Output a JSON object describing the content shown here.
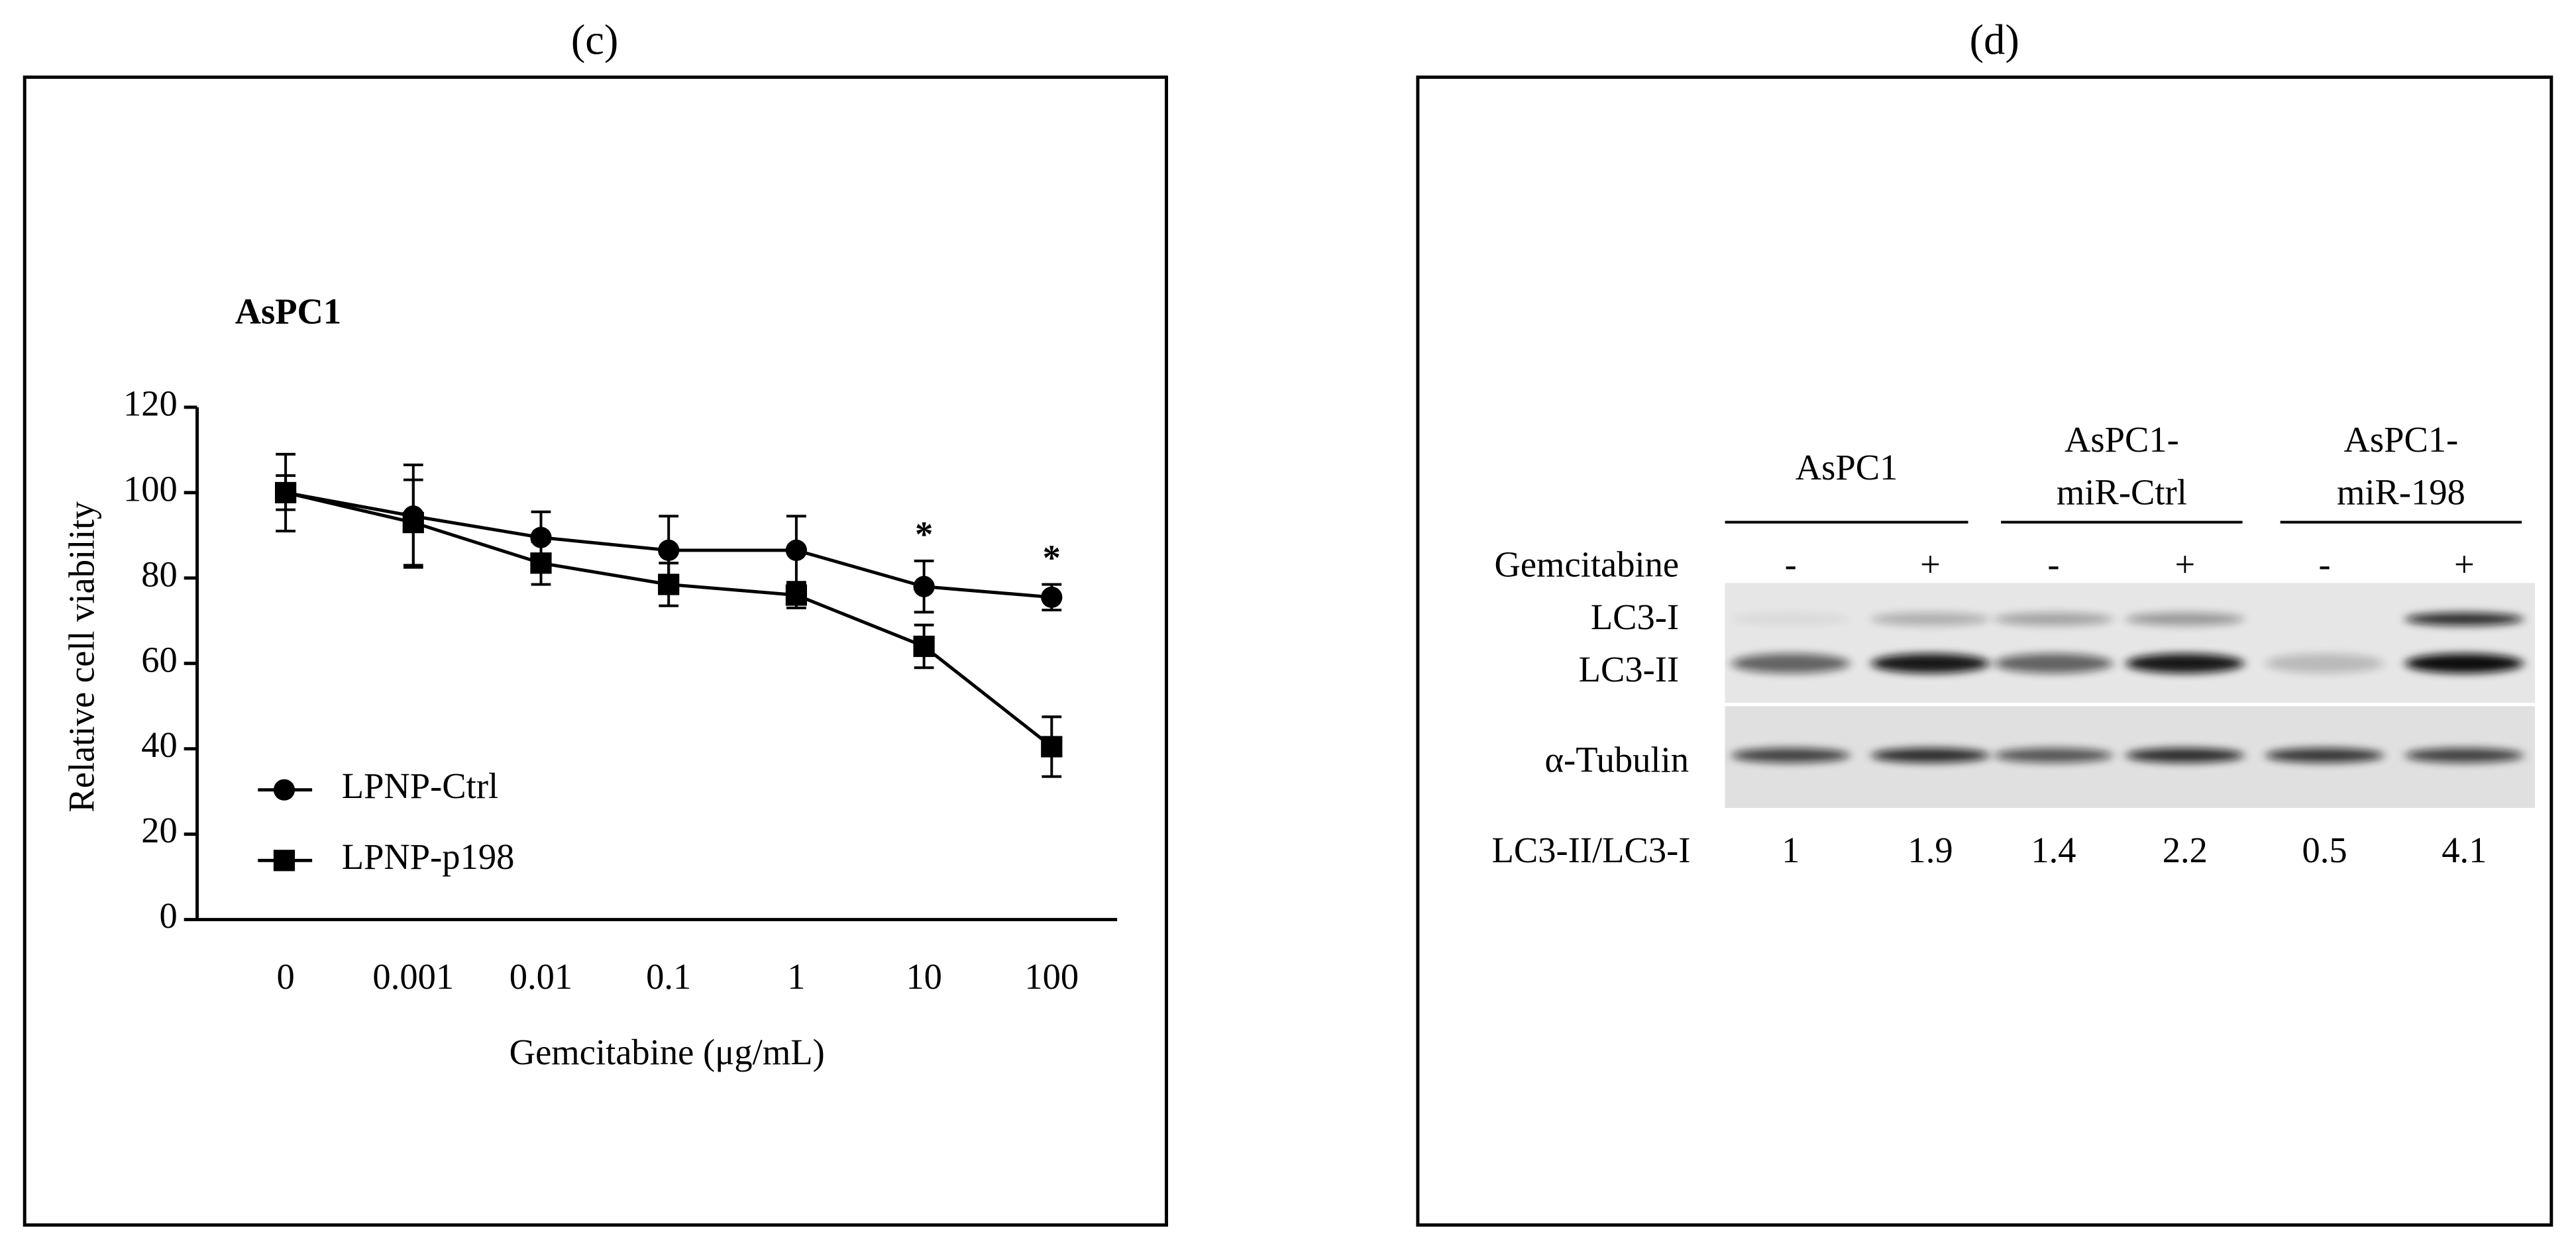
{
  "panels": {
    "c": "(c)",
    "d": "(d)"
  },
  "chart_data": {
    "type": "line",
    "title": "AsPC1",
    "x_label": "Gemcitabine (μg/mL)",
    "y_label": "Relative cell viability",
    "categories": [
      "0",
      "0.001",
      "0.01",
      "0.1",
      "1",
      "10",
      "100"
    ],
    "series": [
      {
        "name": "LPNP-Ctrl",
        "color": "#000000",
        "marker": "circle",
        "values": [
          100,
          94.5,
          89.5,
          86.5,
          86.5,
          78,
          75.5
        ],
        "errors": [
          9,
          12,
          6,
          8,
          8,
          6,
          3
        ]
      },
      {
        "name": "LPNP-p198",
        "color": "#000000",
        "marker": "square",
        "values": [
          100,
          93,
          83.5,
          78.5,
          76,
          64,
          40.5
        ],
        "errors": [
          4,
          10,
          5,
          5,
          3,
          5,
          7
        ]
      }
    ],
    "ylim": [
      0,
      120
    ],
    "yticks": [
      0,
      20,
      40,
      60,
      80,
      100,
      120
    ],
    "annotations": [
      {
        "text": "*",
        "x": "10"
      },
      {
        "text": "*",
        "x": "100"
      }
    ],
    "legend": "lower left"
  },
  "blot": {
    "groups": [
      {
        "lines": [
          "AsPC1"
        ]
      },
      {
        "lines": [
          "AsPC1-",
          "miR-Ctrl"
        ]
      },
      {
        "lines": [
          "AsPC1-",
          "miR-198"
        ]
      }
    ],
    "treatment": "Gemcitabine",
    "signs": [
      "-",
      "+",
      "-",
      "+",
      "-",
      "+"
    ],
    "bands": [
      "LC3-I",
      "LC3-II",
      "α-Tubulin"
    ],
    "ratio_label": "LC3-II/LC3-I",
    "ratios": [
      1,
      1.9,
      1.4,
      2.2,
      0.5,
      4.1
    ]
  }
}
